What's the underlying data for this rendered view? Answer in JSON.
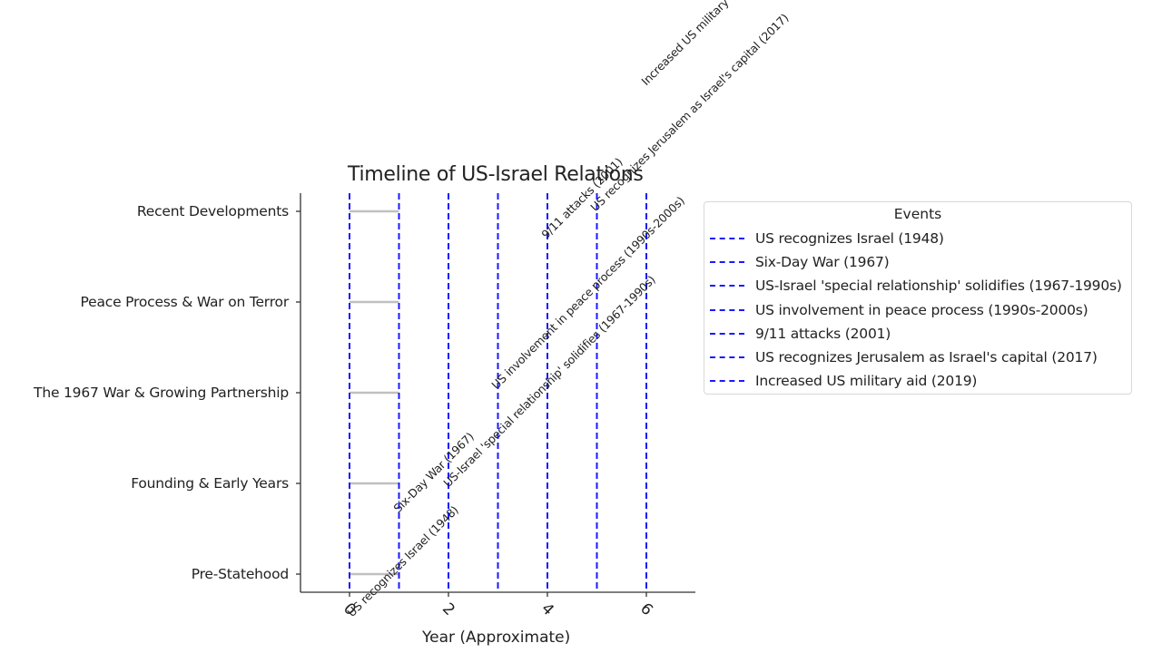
{
  "chart_data": {
    "type": "timeline",
    "title": "Timeline of US-Israel Relations",
    "xlabel": "Year (Approximate)",
    "ylabel": "",
    "xlim": [
      -1,
      7
    ],
    "x_ticks": [
      0,
      2,
      4,
      6
    ],
    "x_tick_labels": [
      "0",
      "2",
      "4",
      "6"
    ],
    "categories": [
      "Pre-Statehood",
      "Founding & Early Years",
      "The 1967 War & Growing Partnership",
      "Peace Process & War on Terror",
      "Recent Developments"
    ],
    "period_segments": [
      {
        "category": "Pre-Statehood",
        "start": 0,
        "end": 1
      },
      {
        "category": "Founding & Early Years",
        "start": 0,
        "end": 1
      },
      {
        "category": "The 1967 War & Growing Partnership",
        "start": 0,
        "end": 1
      },
      {
        "category": "Peace Process & War on Terror",
        "start": 0,
        "end": 1
      },
      {
        "category": "Recent Developments",
        "start": 0,
        "end": 1
      }
    ],
    "events": [
      {
        "x": 0,
        "label": "US recognizes Israel (1948)",
        "annotation": "US recognizes Israel (1948)"
      },
      {
        "x": 1,
        "label": "Six-Day War (1967)",
        "annotation": "Six-Day War (1967)"
      },
      {
        "x": 2,
        "label": "US-Israel 'special relationship' solidifies (1967-1990s)",
        "annotation": "US-Israel 'special relationship' solidifies (1967-1990s)"
      },
      {
        "x": 3,
        "label": "US involvement in peace process (1990s-2000s)",
        "annotation": "US involvement in peace process (1990s-2000s)"
      },
      {
        "x": 4,
        "label": "9/11 attacks (2001)",
        "annotation": "9/11 attacks (2001)"
      },
      {
        "x": 5,
        "label": "US recognizes Jerusalem as Israel's capital (2017)",
        "annotation": "US recognizes Jerusalem as Israel's capital (2017)"
      },
      {
        "x": 6,
        "label": "Increased US military aid (2019)",
        "annotation": "Increased US military"
      }
    ],
    "legend": {
      "title": "Events",
      "position": "right outside",
      "entries": [
        "US recognizes Israel (1948)",
        "Six-Day War (1967)",
        "US-Israel 'special relationship' solidifies (1967-1990s)",
        "US involvement in peace process (1990s-2000s)",
        "9/11 attacks (2001)",
        "US recognizes Jerusalem as Israel's capital (2017)",
        "Increased US military aid (2019)"
      ]
    },
    "grid": false,
    "colors": {
      "event_line": "#1a1aff",
      "segment": "#c0c0c0",
      "axis": "#333333",
      "text": "#222222"
    }
  }
}
